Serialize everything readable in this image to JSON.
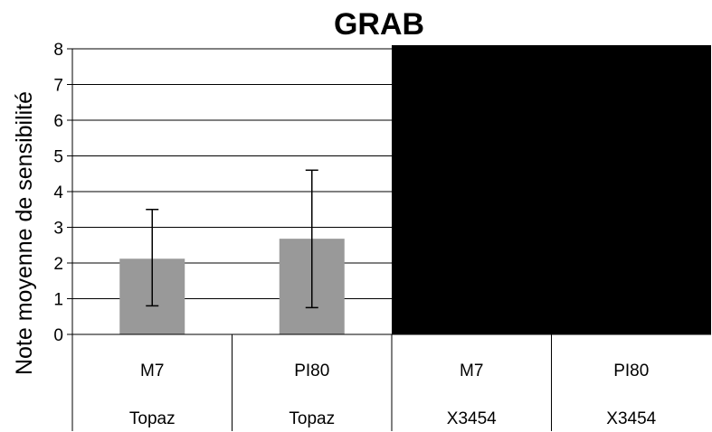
{
  "chart_data": {
    "type": "bar",
    "title": "GRAB",
    "ylabel": "Note moyenne de sensibilité",
    "xlabel": "",
    "ylim": [
      0,
      8
    ],
    "yticks": [
      0,
      1,
      2,
      3,
      4,
      5,
      6,
      7,
      8
    ],
    "grid": true,
    "categories": [
      {
        "line1": "M7",
        "line2": "Topaz"
      },
      {
        "line1": "PI80",
        "line2": "Topaz"
      },
      {
        "line1": "M7",
        "line2": "X3454"
      },
      {
        "line1": "PI80",
        "line2": "X3454"
      }
    ],
    "series": [
      {
        "values": [
          2.12,
          2.68,
          null,
          null
        ],
        "error_low": [
          0.8,
          0.75,
          null,
          null
        ],
        "error_high": [
          3.5,
          4.6,
          null,
          null
        ],
        "color": "#999999"
      }
    ],
    "redacted_region_color": "#000000"
  }
}
